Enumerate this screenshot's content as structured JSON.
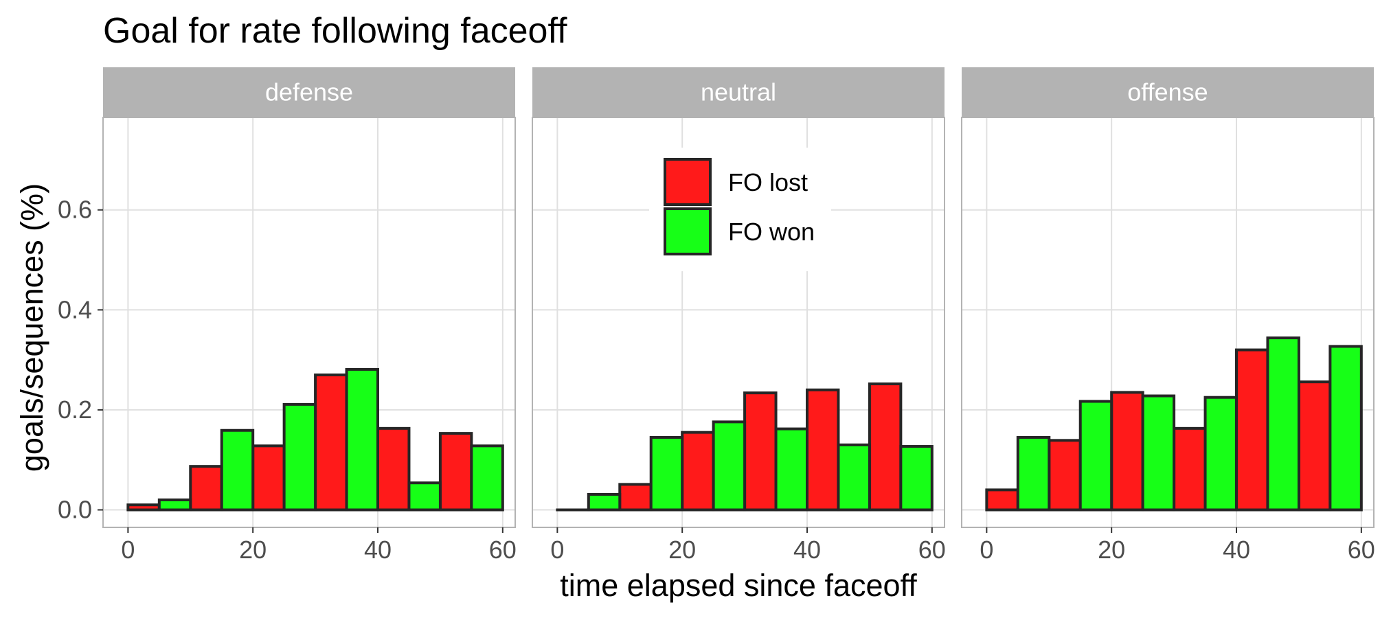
{
  "chart_data": {
    "type": "bar",
    "title": "Goal for rate following faceoff",
    "xlabel": "time elapsed since faceoff",
    "ylabel": "goals/sequences (%)",
    "xlim": [
      -4,
      62
    ],
    "ylim": [
      -0.035,
      0.785
    ],
    "x_ticks": [
      0,
      20,
      40,
      60
    ],
    "y_ticks": [
      0.0,
      0.2,
      0.4,
      0.6
    ],
    "x_tick_labels": [
      "0",
      "20",
      "40",
      "60"
    ],
    "y_tick_labels": [
      "0.0",
      "0.2",
      "0.4",
      "0.6"
    ],
    "grid": true,
    "bin_starts": [
      0,
      10,
      20,
      30,
      40,
      50
    ],
    "bin_width": 10,
    "legend": {
      "placement": "inside middle panel, top",
      "entries": [
        {
          "label": "FO lost",
          "color": "#ff1a1a"
        },
        {
          "label": "FO won",
          "color": "#17ff17"
        }
      ]
    },
    "panels": [
      {
        "name": "defense",
        "series": [
          {
            "name": "FO lost",
            "values": [
              0.01,
              0.087,
              0.128,
              0.27,
              0.163,
              0.153
            ]
          },
          {
            "name": "FO won",
            "values": [
              0.02,
              0.159,
              0.211,
              0.281,
              0.054,
              0.128
            ]
          }
        ]
      },
      {
        "name": "neutral",
        "series": [
          {
            "name": "FO lost",
            "values": [
              0.0,
              0.051,
              0.155,
              0.234,
              0.24,
              0.252
            ]
          },
          {
            "name": "FO won",
            "values": [
              0.031,
              0.145,
              0.176,
              0.162,
              0.13,
              0.127
            ]
          }
        ]
      },
      {
        "name": "offense",
        "series": [
          {
            "name": "FO lost",
            "values": [
              0.04,
              0.139,
              0.235,
              0.163,
              0.32,
              0.256
            ]
          },
          {
            "name": "FO won",
            "values": [
              0.145,
              0.217,
              0.228,
              0.225,
              0.344,
              0.327
            ]
          }
        ]
      }
    ]
  },
  "colors": {
    "fo_lost": "#ff1a1a",
    "fo_won": "#17ff17",
    "bar_outline": "#262626",
    "strip_fill": "#b3b3b3",
    "panel_border": "#b3b3b3",
    "grid": "#e0e0e0"
  }
}
